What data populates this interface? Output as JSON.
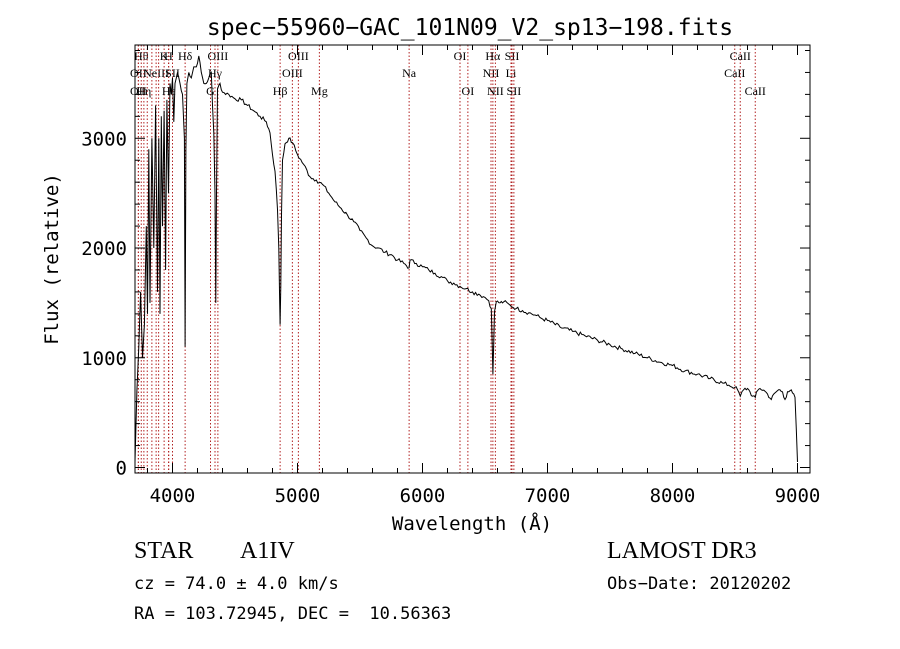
{
  "chart_data": {
    "type": "line",
    "title": "spec−55960−GAC_101N09_V2_sp13−198.fits",
    "xlabel": "Wavelength (Å)",
    "ylabel": "Flux (relative)",
    "xlim": [
      3700,
      9100
    ],
    "ylim": [
      -50,
      3850
    ],
    "x_ticks": [
      {
        "value": 4000,
        "label": "4000"
      },
      {
        "value": 5000,
        "label": "5000"
      },
      {
        "value": 6000,
        "label": "6000"
      },
      {
        "value": 7000,
        "label": "7000"
      },
      {
        "value": 8000,
        "label": "8000"
      },
      {
        "value": 9000,
        "label": "9000"
      }
    ],
    "y_ticks": [
      {
        "value": 0,
        "label": "0"
      },
      {
        "value": 1000,
        "label": "1000"
      },
      {
        "value": 2000,
        "label": "2000"
      },
      {
        "value": 3000,
        "label": "3000"
      }
    ],
    "grid": false,
    "line_color": "#000000",
    "marker_color": "#b22222",
    "series": [
      {
        "name": "flux",
        "x": [
          3700,
          3715,
          3730,
          3745,
          3760,
          3775,
          3790,
          3800,
          3810,
          3820,
          3835,
          3850,
          3865,
          3880,
          3890,
          3900,
          3910,
          3920,
          3933,
          3945,
          3955,
          3968,
          3980,
          3990,
          4000,
          4010,
          4020,
          4040,
          4060,
          4080,
          4095,
          4101,
          4107,
          4115,
          4130,
          4150,
          4170,
          4190,
          4210,
          4230,
          4250,
          4270,
          4290,
          4310,
          4320,
          4330,
          4340,
          4346,
          4352,
          4360,
          4380,
          4400,
          4450,
          4500,
          4550,
          4600,
          4650,
          4700,
          4750,
          4780,
          4800,
          4820,
          4840,
          4850,
          4856,
          4861,
          4866,
          4872,
          4880,
          4900,
          4930,
          4960,
          5000,
          5050,
          5100,
          5150,
          5200,
          5250,
          5300,
          5350,
          5400,
          5450,
          5500,
          5550,
          5600,
          5650,
          5700,
          5750,
          5800,
          5850,
          5893,
          5900,
          5950,
          6000,
          6050,
          6100,
          6150,
          6200,
          6250,
          6300,
          6350,
          6400,
          6450,
          6500,
          6530,
          6550,
          6556,
          6563,
          6570,
          6576,
          6590,
          6620,
          6650,
          6700,
          6750,
          6800,
          6850,
          6900,
          6950,
          7000,
          7100,
          7200,
          7300,
          7400,
          7500,
          7600,
          7700,
          7800,
          7900,
          8000,
          8100,
          8200,
          8300,
          8400,
          8450,
          8498,
          8520,
          8542,
          8570,
          8600,
          8620,
          8640,
          8662,
          8680,
          8700,
          8730,
          8760,
          8790,
          8820,
          8850,
          8880,
          8900,
          8920,
          8940,
          8960,
          8980,
          8990,
          9000
        ],
        "y": [
          50,
          700,
          1100,
          1600,
          1000,
          1300,
          2200,
          1400,
          2900,
          1500,
          3000,
          2000,
          3300,
          1600,
          3000,
          1400,
          3200,
          2200,
          3250,
          1800,
          3350,
          2500,
          3500,
          3400,
          3550,
          3150,
          3500,
          3600,
          3500,
          3400,
          3000,
          1100,
          2900,
          3500,
          3600,
          3550,
          3650,
          3650,
          3750,
          3600,
          3500,
          3500,
          3550,
          3600,
          3300,
          3050,
          2500,
          1500,
          2500,
          3450,
          3500,
          3420,
          3400,
          3360,
          3350,
          3300,
          3250,
          3200,
          3150,
          3050,
          2850,
          2700,
          2350,
          2000,
          1600,
          1300,
          1650,
          2300,
          2800,
          2950,
          3000,
          2960,
          2850,
          2760,
          2650,
          2620,
          2580,
          2500,
          2420,
          2360,
          2300,
          2240,
          2160,
          2090,
          2020,
          2000,
          1960,
          1940,
          1890,
          1860,
          1820,
          1890,
          1860,
          1830,
          1800,
          1770,
          1740,
          1700,
          1680,
          1650,
          1630,
          1600,
          1580,
          1550,
          1520,
          1450,
          1200,
          850,
          1150,
          1420,
          1510,
          1500,
          1510,
          1480,
          1450,
          1430,
          1410,
          1390,
          1360,
          1340,
          1280,
          1240,
          1200,
          1160,
          1120,
          1080,
          1040,
          1000,
          960,
          930,
          880,
          850,
          810,
          770,
          750,
          730,
          710,
          650,
          710,
          720,
          690,
          650,
          640,
          700,
          720,
          705,
          670,
          620,
          680,
          710,
          690,
          620,
          690,
          700,
          680,
          640,
          350,
          50
        ]
      }
    ],
    "line_markers": [
      {
        "x": 3750,
        "label": "Hθ",
        "row": 1
      },
      {
        "x": 3727,
        "label": "OII",
        "row": 2
      },
      {
        "x": 3727,
        "label": "OII",
        "row": 3
      },
      {
        "x": 3771,
        "label": "Hη",
        "row": 3
      },
      {
        "x": 3798,
        "label": "",
        "row": 0
      },
      {
        "x": 3835,
        "label": "",
        "row": 0
      },
      {
        "x": 3869,
        "label": "NeIII",
        "row": 2
      },
      {
        "x": 3889,
        "label": "",
        "row": 0
      },
      {
        "x": 3933,
        "label": "K",
        "row": 1
      },
      {
        "x": 3968,
        "label": "H",
        "row": 1
      },
      {
        "x": 3970,
        "label": "Hε",
        "row": 3
      },
      {
        "x": 4000,
        "label": "SII",
        "row": 2
      },
      {
        "x": 4101,
        "label": "Hδ",
        "row": 1
      },
      {
        "x": 4304,
        "label": "G",
        "row": 3
      },
      {
        "x": 4340,
        "label": "Hγ",
        "row": 2
      },
      {
        "x": 4363,
        "label": "OIII",
        "row": 1
      },
      {
        "x": 4861,
        "label": "Hβ",
        "row": 3
      },
      {
        "x": 4959,
        "label": "OIII",
        "row": 2
      },
      {
        "x": 5007,
        "label": "OIII",
        "row": 1
      },
      {
        "x": 5175,
        "label": "Mg",
        "row": 3
      },
      {
        "x": 5893,
        "label": "Na",
        "row": 2
      },
      {
        "x": 6300,
        "label": "OI",
        "row": 1
      },
      {
        "x": 6363,
        "label": "OI",
        "row": 3
      },
      {
        "x": 6548,
        "label": "NII",
        "row": 2
      },
      {
        "x": 6563,
        "label": "Hα",
        "row": 1
      },
      {
        "x": 6583,
        "label": "NII",
        "row": 3
      },
      {
        "x": 6708,
        "label": "Li",
        "row": 2
      },
      {
        "x": 6716,
        "label": "SII",
        "row": 1
      },
      {
        "x": 6731,
        "label": "SII",
        "row": 3
      },
      {
        "x": 8498,
        "label": "CaII",
        "row": 2
      },
      {
        "x": 8542,
        "label": "CaII",
        "row": 1
      },
      {
        "x": 8662,
        "label": "CaII",
        "row": 3
      }
    ]
  },
  "info": {
    "object_class": "STAR",
    "subclass": "A1IV",
    "survey": "LAMOST DR3",
    "redshift": "cz = 74.0 ± 4.0 km/s",
    "obs_date": "Obs−Date: 20120202",
    "coordinates": "RA = 103.72945, DEC =  10.56363"
  }
}
